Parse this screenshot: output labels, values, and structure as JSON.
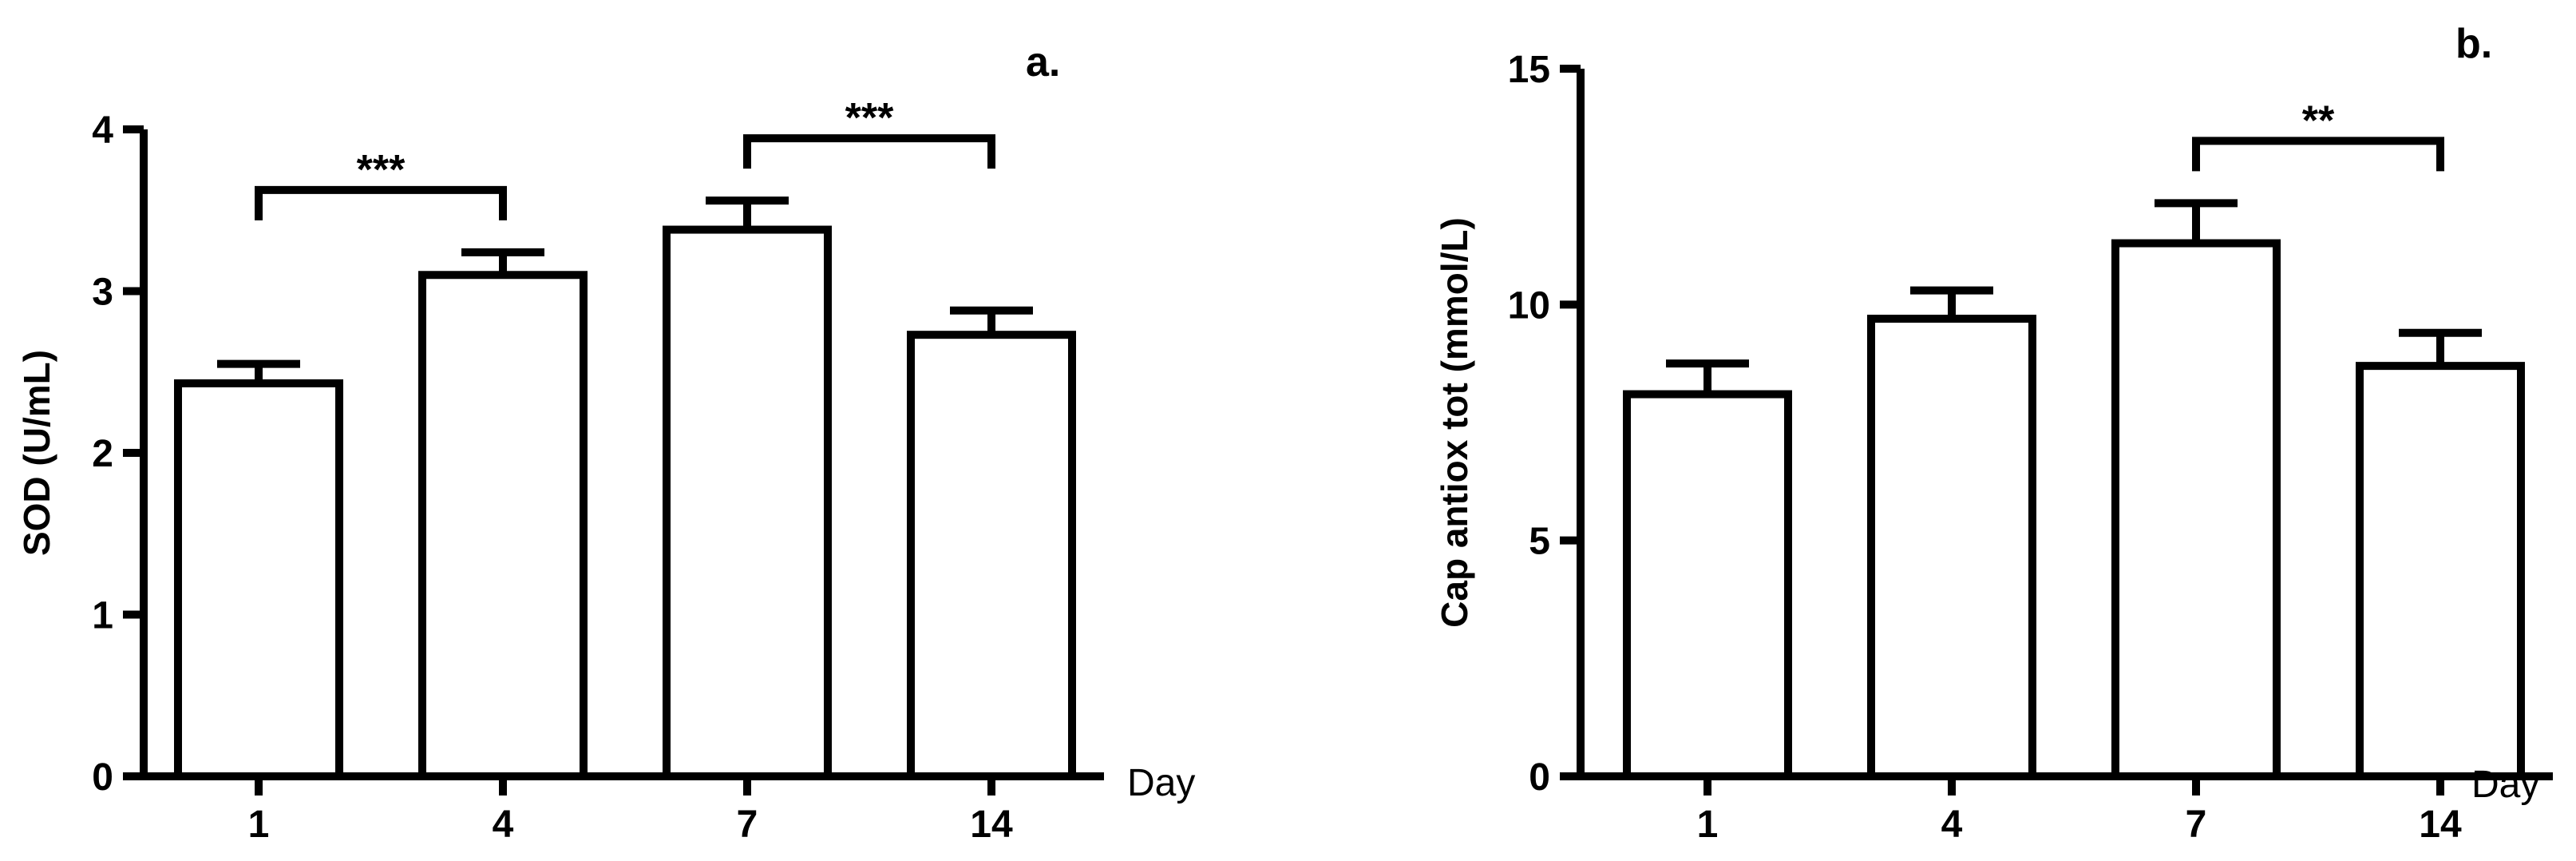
{
  "chart_data": [
    {
      "type": "bar",
      "panel_label": "a.",
      "categories": [
        "1",
        "4",
        "7",
        "14"
      ],
      "values": [
        2.43,
        3.1,
        3.38,
        2.73
      ],
      "errors": [
        0.12,
        0.14,
        0.18,
        0.15
      ],
      "xlabel": "Day",
      "ylabel": "SOD (U/mL)",
      "ylim": [
        0,
        4
      ],
      "yticks": [
        "0",
        "1",
        "2",
        "3",
        "4"
      ],
      "significance": [
        {
          "from": 0,
          "to": 1,
          "label": "***"
        },
        {
          "from": 2,
          "to": 3,
          "label": "***"
        }
      ],
      "bar_fill": "#ffffff",
      "line_color": "#000000"
    },
    {
      "type": "bar",
      "panel_label": "b.",
      "categories": [
        "1",
        "4",
        "7",
        "14"
      ],
      "values": [
        8.1,
        9.7,
        11.3,
        8.7
      ],
      "errors": [
        0.65,
        0.6,
        0.85,
        0.7
      ],
      "xlabel": "Day",
      "ylabel": "Cap antiox tot (mmol/L)",
      "ylim": [
        0,
        15
      ],
      "yticks": [
        "0",
        "5",
        "10",
        "15"
      ],
      "significance": [
        {
          "from": 2,
          "to": 3,
          "label": "**"
        }
      ],
      "bar_fill": "#ffffff",
      "line_color": "#000000"
    }
  ]
}
